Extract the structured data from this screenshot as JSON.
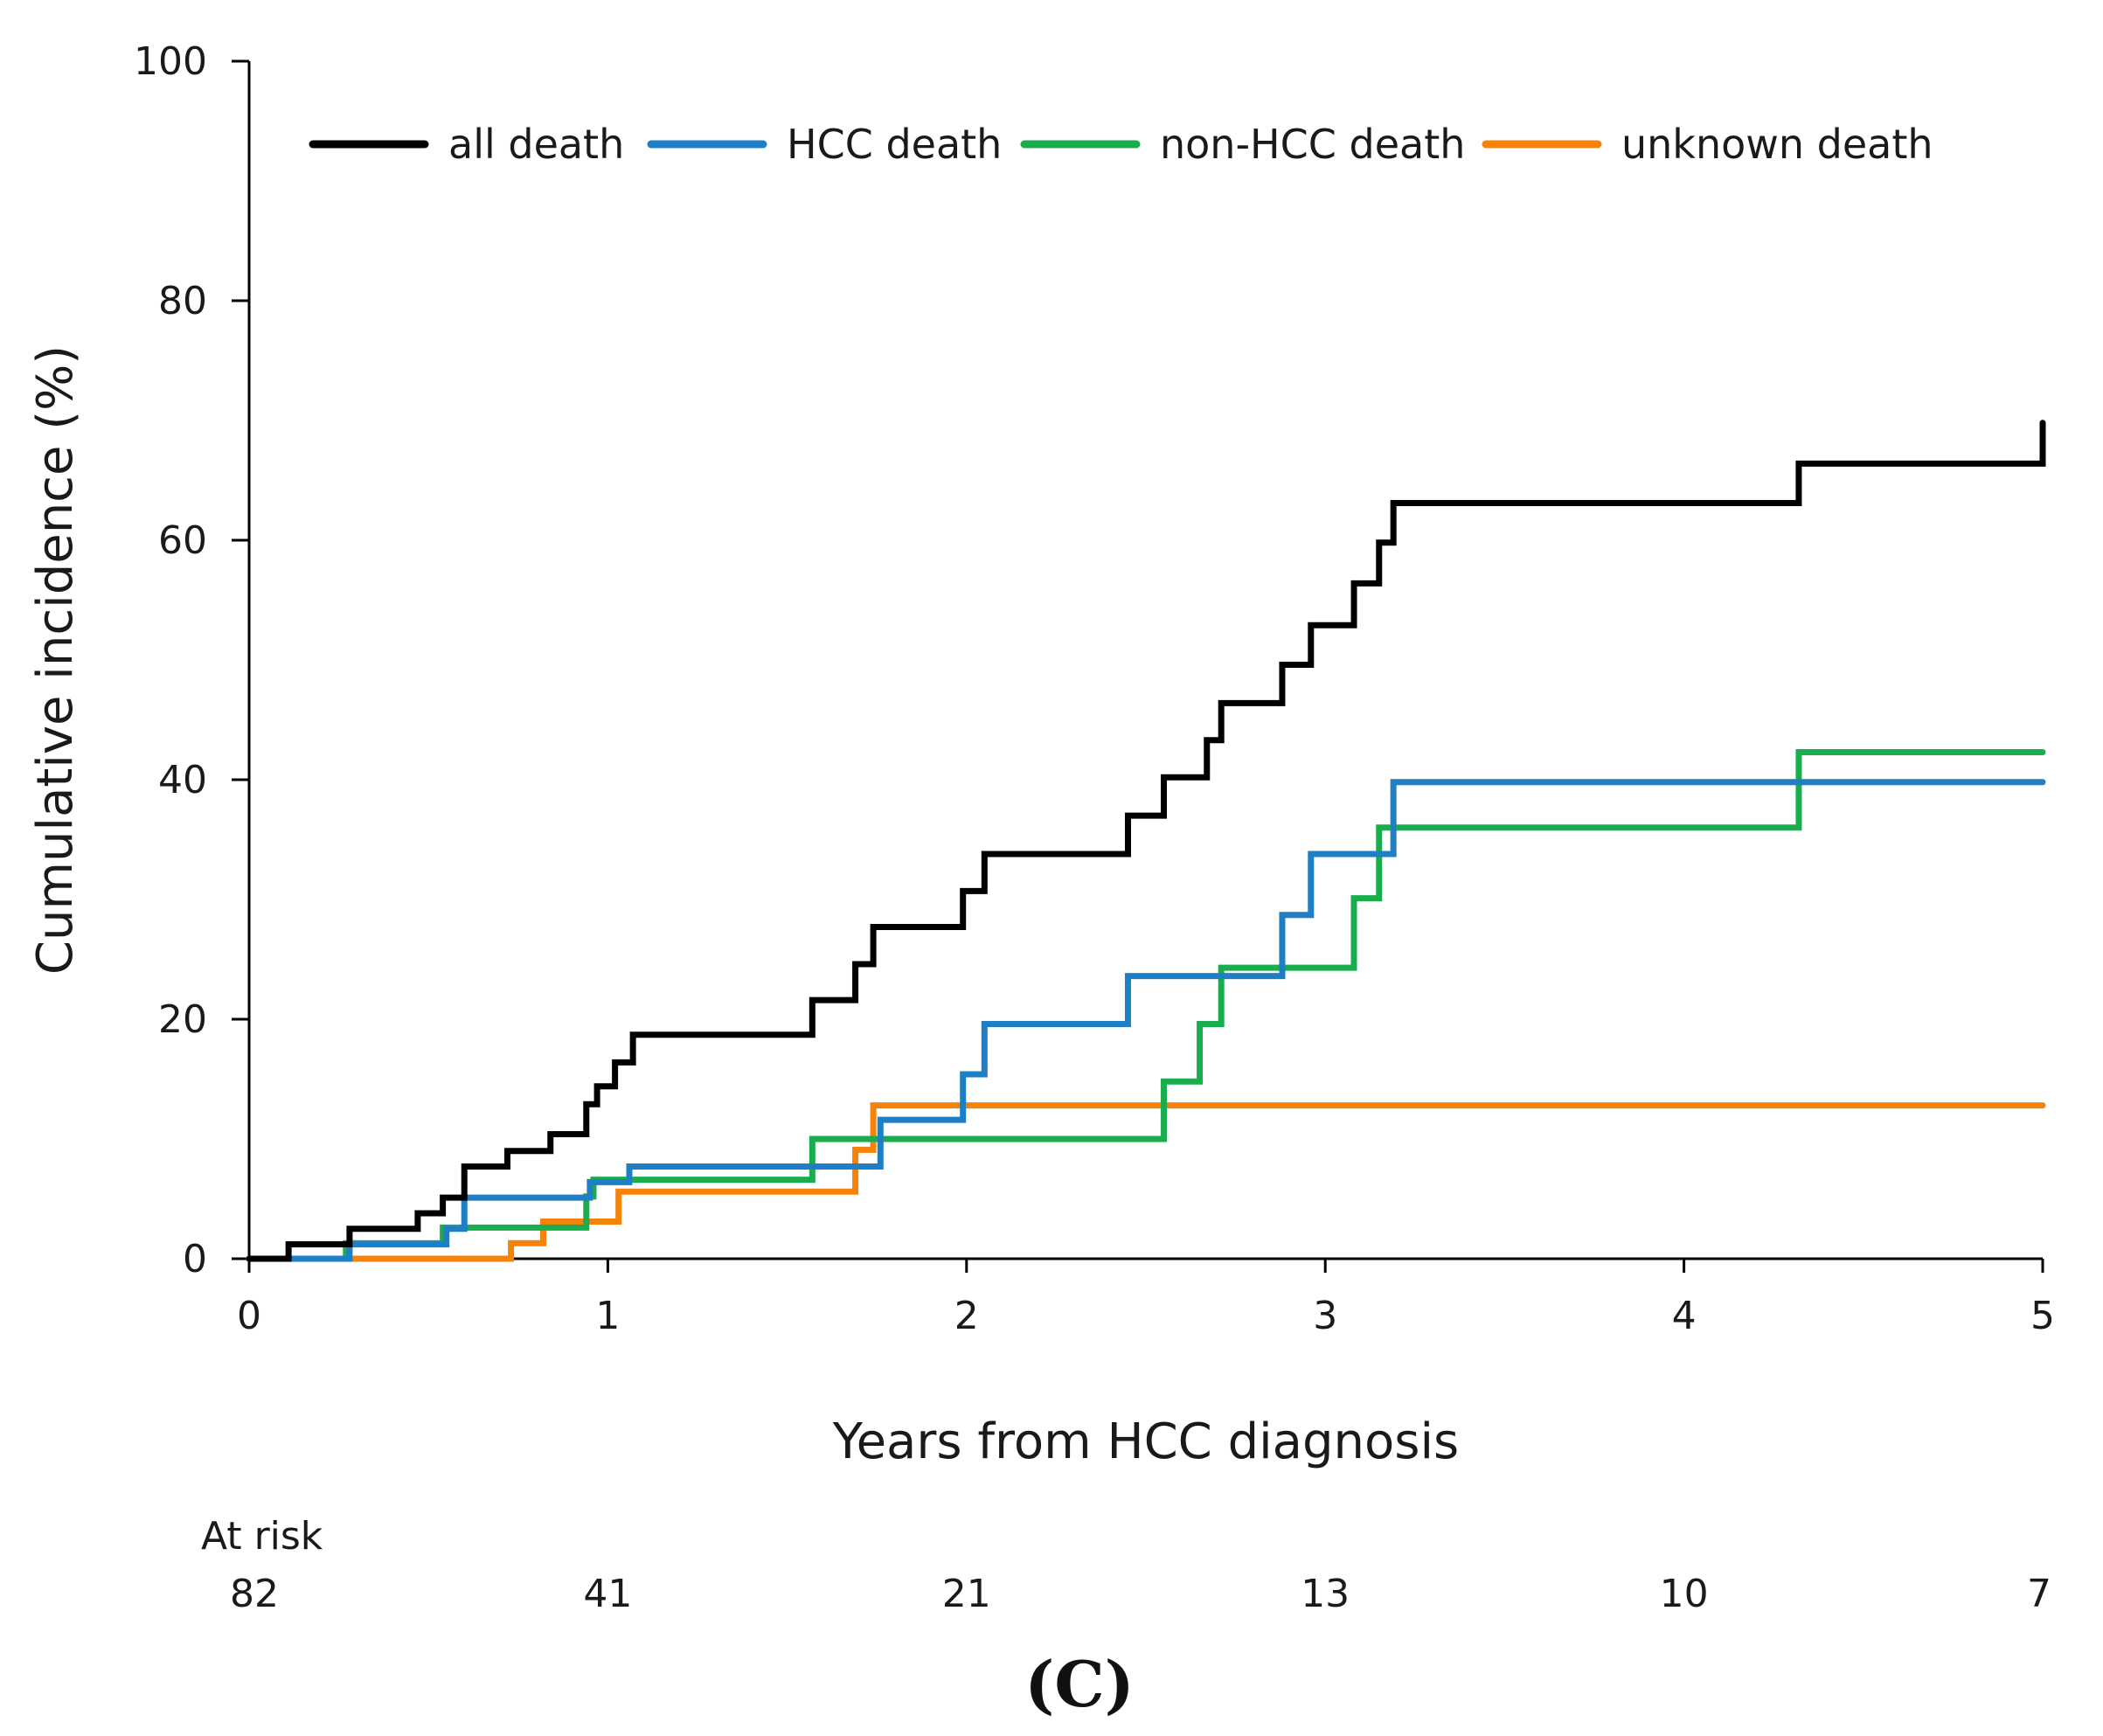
{
  "chart_data": {
    "type": "line",
    "subtype": "step",
    "title": "",
    "xlabel": "Years from HCC diagnosis",
    "ylabel": "Cumulative incidence (%)",
    "xlim": [
      0,
      5
    ],
    "ylim": [
      0,
      100
    ],
    "xticks": [
      "0",
      "1",
      "2",
      "3",
      "4",
      "5"
    ],
    "yticks": [
      "0",
      "20",
      "40",
      "60",
      "80",
      "100"
    ],
    "grid": false,
    "legend_position": "top",
    "series": [
      {
        "name": "all death",
        "color": "#000000",
        "x": [
          0,
          0.11,
          0.28,
          0.47,
          0.54,
          0.6,
          0.72,
          0.84,
          0.94,
          0.97,
          1.02,
          1.07,
          1.57,
          1.69,
          1.74,
          1.99,
          2.05,
          2.45,
          2.55,
          2.67,
          2.71,
          2.88,
          2.96,
          3.08,
          3.15,
          3.19,
          4.32,
          5.0
        ],
        "y": [
          0,
          1.2,
          2.5,
          3.8,
          5.1,
          7.7,
          9.0,
          10.4,
          12.9,
          14.4,
          16.4,
          18.7,
          21.6,
          24.6,
          27.7,
          30.7,
          33.8,
          37.0,
          40.2,
          43.3,
          46.4,
          49.6,
          52.9,
          56.4,
          59.8,
          63.1,
          66.4,
          69.8
        ]
      },
      {
        "name": "HCC death",
        "color": "#1f7fc4",
        "x": [
          0,
          0.28,
          0.55,
          0.6,
          0.95,
          1.06,
          1.76,
          1.99,
          2.05,
          2.45,
          2.88,
          2.96,
          3.19,
          5.0
        ],
        "y": [
          0,
          1.2,
          2.5,
          5.1,
          6.4,
          7.7,
          11.6,
          15.4,
          19.6,
          23.6,
          28.7,
          33.8,
          39.8,
          39.8
        ]
      },
      {
        "name": "non-HCC death",
        "color": "#1aad4e",
        "x": [
          0,
          0.27,
          0.54,
          0.94,
          0.96,
          1.57,
          2.55,
          2.65,
          2.71,
          3.08,
          3.15,
          4.32,
          5.0
        ],
        "y": [
          0,
          1.3,
          2.6,
          5.2,
          6.6,
          10.0,
          14.8,
          19.6,
          24.3,
          30.1,
          36.0,
          42.3,
          42.3
        ]
      },
      {
        "name": "unknown death",
        "color": "#f5820a",
        "x": [
          0,
          0.13,
          0.73,
          0.82,
          1.03,
          1.69,
          1.74,
          5.0
        ],
        "y": [
          0,
          0,
          1.3,
          3.1,
          5.6,
          9.1,
          12.8,
          12.8
        ]
      }
    ],
    "at_risk": {
      "label": "At risk",
      "x": [
        0,
        1,
        2,
        3,
        4,
        5
      ],
      "values": [
        "82",
        "41",
        "21",
        "13",
        "10",
        "7"
      ]
    },
    "panel_label": "(C)"
  }
}
